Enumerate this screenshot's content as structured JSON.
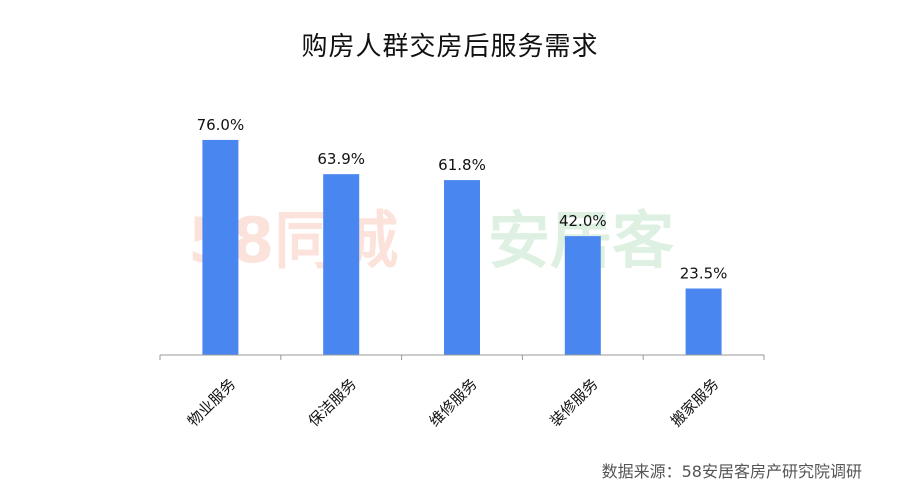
{
  "watermark": {
    "left_text": "58同城",
    "right_text": "安居客"
  },
  "source": "数据来源：58安居客房产研究院调研",
  "chart_data": {
    "type": "bar",
    "title": "购房人群交房后服务需求",
    "categories": [
      "物业服务",
      "保洁服务",
      "维修服务",
      "装修服务",
      "搬家服务"
    ],
    "values": [
      76.0,
      63.9,
      61.8,
      42.0,
      23.5
    ],
    "value_labels": [
      "76.0%",
      "63.9%",
      "61.8%",
      "42.0%",
      "23.5%"
    ],
    "ylim": [
      0,
      100
    ],
    "grid": false,
    "legend": "none",
    "bar_color": "#4a86f0",
    "axis_color": "#999999"
  }
}
